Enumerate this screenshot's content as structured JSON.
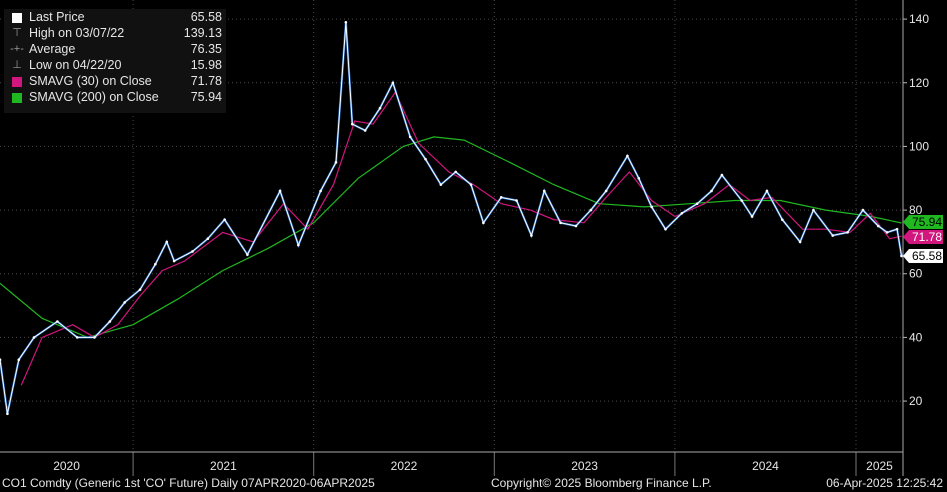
{
  "colors": {
    "background": "#000000",
    "price": "#ffffff",
    "price_highlight": "#2a78d6",
    "sma30": "#d1167e",
    "sma200": "#20b820",
    "grid": "#4a4a4a",
    "axis_text": "#e6e6e6"
  },
  "legend": [
    {
      "label": "Last Price",
      "value": "65.58",
      "glyph": "square",
      "color": "#ffffff"
    },
    {
      "label": "High on 03/07/22",
      "value": "139.13",
      "glyph": "T",
      "color": "#9a9a9a"
    },
    {
      "label": "Average",
      "value": "76.35",
      "glyph": "-+-",
      "color": "#9a9a9a"
    },
    {
      "label": "Low on 04/22/20",
      "value": "15.98",
      "glyph": "⊥",
      "color": "#9a9a9a"
    },
    {
      "label": "SMAVG (30)  on Close",
      "value": "71.78",
      "glyph": "square",
      "color": "#d1167e"
    },
    {
      "label": "SMAVG (200)  on Close",
      "value": "75.94",
      "glyph": "square",
      "color": "#20b820"
    }
  ],
  "footer": {
    "left": "CO1 Comdty (Generic 1st 'CO' Future)  Daily 07APR2020-06APR2025",
    "center": "Copyright© 2025 Bloomberg Finance L.P.",
    "right": "06-Apr-2025 12:25:42"
  },
  "chart_data": {
    "type": "line",
    "title": "",
    "xlabel": "",
    "ylabel": "",
    "x_range": [
      "2020-04-07",
      "2025-04-06"
    ],
    "ylim": [
      4,
      146
    ],
    "y_ticks": [
      20,
      40,
      60,
      80,
      100,
      120,
      140
    ],
    "x_year_labels": [
      "2020",
      "2021",
      "2022",
      "2023",
      "2024",
      "2025"
    ],
    "grid": true,
    "legend_position": "top-left",
    "last_value_tags": [
      {
        "series": "SMAVG (200)  on Close",
        "value": "75.94"
      },
      {
        "series": "SMAVG (30)  on Close",
        "value": "71.78"
      },
      {
        "series": "Last Price",
        "value": "65.58"
      }
    ],
    "series": [
      {
        "name": "Last Price",
        "x": [
          "2020-04-07",
          "2020-04-22",
          "2020-05-15",
          "2020-06-15",
          "2020-08-01",
          "2020-09-10",
          "2020-10-15",
          "2020-11-15",
          "2020-12-15",
          "2021-01-15",
          "2021-02-15",
          "2021-03-10",
          "2021-03-25",
          "2021-05-01",
          "2021-06-01",
          "2021-07-05",
          "2021-08-20",
          "2021-10-25",
          "2021-12-01",
          "2022-01-15",
          "2022-02-15",
          "2022-03-07",
          "2022-03-20",
          "2022-04-15",
          "2022-05-15",
          "2022-06-10",
          "2022-07-15",
          "2022-08-15",
          "2022-09-15",
          "2022-10-15",
          "2022-11-15",
          "2022-12-10",
          "2023-01-15",
          "2023-02-15",
          "2023-03-17",
          "2023-04-12",
          "2023-05-15",
          "2023-06-15",
          "2023-07-15",
          "2023-08-15",
          "2023-09-27",
          "2023-10-20",
          "2023-11-15",
          "2023-12-13",
          "2024-01-15",
          "2024-02-15",
          "2024-03-15",
          "2024-04-05",
          "2024-05-15",
          "2024-06-05",
          "2024-07-05",
          "2024-08-05",
          "2024-09-10",
          "2024-10-07",
          "2024-11-15",
          "2024-12-15",
          "2025-01-15",
          "2025-02-15",
          "2025-03-05",
          "2025-03-25",
          "2025-04-03"
        ],
        "y": [
          33,
          16,
          33,
          40,
          45,
          40,
          40,
          45,
          51,
          55,
          63,
          70,
          64,
          67,
          71,
          77,
          66,
          86,
          69,
          86,
          95,
          139,
          107,
          105,
          112,
          120,
          103,
          96,
          88,
          92,
          88,
          76,
          84,
          83,
          72,
          86,
          76,
          75,
          80,
          86,
          97,
          90,
          81,
          74,
          79,
          82,
          86,
          91,
          83,
          78,
          86,
          77,
          70,
          80,
          72,
          73,
          80,
          75,
          73,
          74,
          65.58
        ]
      },
      {
        "name": "SMAVG (30)  on Close",
        "x": [
          "2020-05-20",
          "2020-07-01",
          "2020-09-01",
          "2020-10-15",
          "2020-12-01",
          "2021-01-15",
          "2021-03-01",
          "2021-04-15",
          "2021-07-01",
          "2021-09-01",
          "2021-11-01",
          "2021-12-20",
          "2022-02-10",
          "2022-03-25",
          "2022-05-01",
          "2022-06-15",
          "2022-08-01",
          "2022-10-01",
          "2022-11-20",
          "2023-01-15",
          "2023-03-15",
          "2023-05-01",
          "2023-07-01",
          "2023-08-15",
          "2023-10-01",
          "2023-11-15",
          "2024-01-01",
          "2024-03-01",
          "2024-04-20",
          "2024-06-01",
          "2024-07-15",
          "2024-09-15",
          "2024-11-01",
          "2024-12-20",
          "2025-01-30",
          "2025-03-10",
          "2025-04-03"
        ],
        "y": [
          25,
          40,
          44,
          40,
          44,
          53,
          61,
          64,
          73,
          70,
          82,
          74,
          88,
          108,
          107,
          117,
          101,
          92,
          88,
          82,
          80,
          77,
          76,
          84,
          92,
          83,
          78,
          82,
          88,
          83,
          84,
          74,
          74,
          73,
          79,
          71,
          71.78
        ]
      },
      {
        "name": "SMAVG (200)  on Close",
        "x": [
          "2020-04-07",
          "2020-07-01",
          "2020-10-01",
          "2021-01-01",
          "2021-04-01",
          "2021-07-01",
          "2021-10-01",
          "2022-01-01",
          "2022-04-01",
          "2022-07-01",
          "2022-09-01",
          "2022-11-01",
          "2023-02-01",
          "2023-05-01",
          "2023-08-01",
          "2023-11-01",
          "2024-02-01",
          "2024-05-01",
          "2024-08-01",
          "2024-11-01",
          "2025-02-01",
          "2025-04-03"
        ],
        "y": [
          57,
          46,
          40,
          44,
          52,
          61,
          68,
          76,
          90,
          100,
          103,
          102,
          95,
          88,
          82,
          81,
          82,
          83,
          83,
          80,
          78,
          75.94
        ]
      }
    ]
  }
}
